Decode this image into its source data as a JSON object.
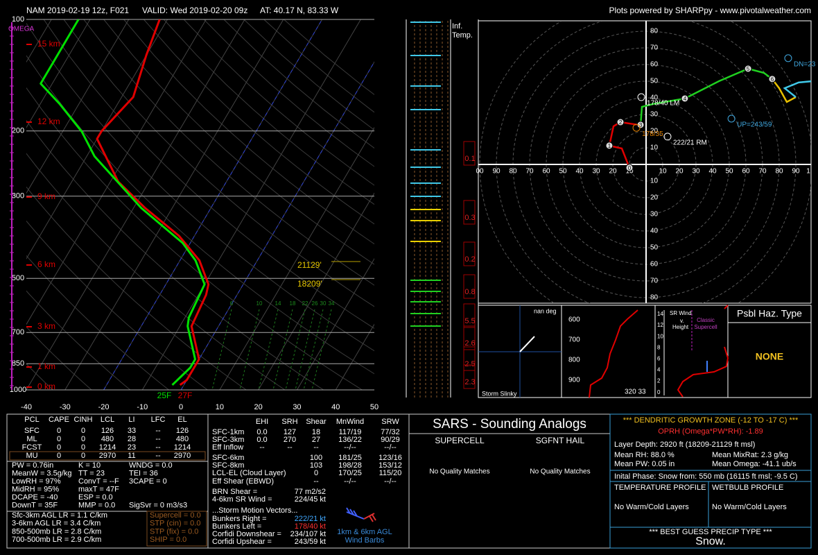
{
  "header": {
    "run": "NAM 2019-02-19 12z, F021",
    "valid": "VALID: Wed 2019-02-20 09z",
    "location": "AT: 40.17 N, 83.33 W",
    "credit": "Plots powered by SHARPpy - www.pivotalweather.com"
  },
  "skewt": {
    "pressure_ticks": [
      100,
      200,
      300,
      500,
      700,
      850,
      1000
    ],
    "plim": [
      100,
      1000
    ],
    "temp_ticks": [
      -40,
      -30,
      -20,
      -10,
      0,
      10,
      20,
      30,
      40,
      50
    ],
    "tlim": [
      -40,
      50
    ],
    "highlight_isotherms": [
      -20,
      0
    ],
    "omega_label": "OMEGA",
    "height_labels": [
      "15 km",
      "12 km",
      "9 km",
      "6 km",
      "3 km",
      "1 km",
      "0 km"
    ],
    "temperature": {
      "color": "#e00000",
      "pressure": [
        970,
        941,
        827,
        673,
        554,
        519,
        447,
        384,
        323,
        274,
        210,
        200,
        162,
        125,
        100
      ],
      "values": [
        -1,
        0,
        0,
        -7,
        -8,
        -9,
        -15,
        -24,
        -37,
        -48,
        -60,
        -60,
        -57,
        -60,
        -62
      ]
    },
    "dewpoint": {
      "color": "#00e000",
      "pressure": [
        970,
        871,
        827,
        673,
        638,
        519,
        447,
        401,
        323,
        234,
        201,
        169,
        149,
        110,
        100
      ],
      "values": [
        -3,
        -1,
        -1,
        -8,
        -9,
        -10,
        -16,
        -22,
        -38,
        -58,
        -65,
        -75,
        -83,
        -83,
        -83
      ]
    },
    "dgz_labels": [
      "21129'",
      "18209'"
    ],
    "surface_labels": [
      "25F",
      "27F"
    ],
    "mixing_ratio_labels": [
      "6",
      "10",
      "14",
      "18",
      "22",
      "26",
      "30",
      "34"
    ]
  },
  "inferred": {
    "title": [
      "Inf.",
      "Temp."
    ],
    "values": [
      0.1,
      0.3,
      0.2,
      0.8,
      5.5,
      2.6,
      2.5,
      2.3
    ]
  },
  "hodograph": {
    "up_labels": [
      "80",
      "70",
      "60",
      "50",
      "40",
      "30",
      "20",
      "10"
    ],
    "left_labels": [
      "00",
      "90",
      "80",
      "70",
      "60",
      "50",
      "40",
      "30",
      "20",
      "10"
    ],
    "right_labels": [
      "10",
      "20",
      "30",
      "40",
      "50",
      "60",
      "70",
      "80",
      "90",
      "1"
    ],
    "down_labels": [
      "10",
      "20",
      "30",
      "40",
      "50",
      "60",
      "70",
      "80"
    ],
    "segments": [
      {
        "color": "#e00000",
        "u": [
          -10,
          -14.6,
          -22.1,
          -19.6,
          -15.4,
          -5
        ],
        "v": [
          -2,
          9.6,
          11.3,
          22.9,
          25.4,
          23.8
        ]
      },
      {
        "color": "#20d020",
        "u": [
          -3.3,
          -2.5,
          4.2,
          23.3,
          43.8,
          61.3,
          70.8,
          75.8
        ],
        "v": [
          23.8,
          34.6,
          36.3,
          39.6,
          50,
          57.5,
          55,
          51.3
        ]
      },
      {
        "color": "#e8c000",
        "u": [
          75.8,
          80,
          84.6,
          90
        ],
        "v": [
          51.3,
          45.8,
          37.5,
          40.4
        ]
      },
      {
        "color": "#40c8e8",
        "u": [
          90,
          83.3,
          91.7,
          100
        ],
        "v": [
          40.4,
          45.8,
          49.2,
          50
        ]
      }
    ],
    "markers": {
      "labels": [
        "0",
        "1",
        "2",
        "3",
        "4",
        "5",
        "6"
      ],
      "u": [
        -10,
        -22.1,
        -15.4,
        -3.3,
        23.3,
        61.3,
        75.8
      ],
      "v": [
        -2,
        11.3,
        25.4,
        23.8,
        39.6,
        57.5,
        51.3
      ]
    },
    "vectors": [
      {
        "label": "178/40 LM",
        "u": -2.9,
        "v": 40.4,
        "color": "#ffffff"
      },
      {
        "label": "222/21 RM",
        "u": 12.9,
        "v": 16.7,
        "color": "#ffffff"
      },
      {
        "label": "UP=243/59",
        "u": 51.3,
        "v": 27.5,
        "color": "#40a8e0"
      },
      {
        "label": "DN=23",
        "u": 85.4,
        "v": 63.8,
        "color": "#40a8e0"
      },
      {
        "label": "178/35",
        "u": -5.8,
        "v": 22,
        "color": "#e08000"
      }
    ]
  },
  "slinky": {
    "label": "nan deg",
    "title": "Storm Slinky"
  },
  "theta_e": {
    "pressure_labels": [
      "600",
      "700",
      "800",
      "900"
    ],
    "footer": "320 33"
  },
  "sr_wind": {
    "title": [
      "SR Wind",
      "v.",
      "Height"
    ],
    "height_labels": [
      "14",
      "12",
      "10",
      "8",
      "6",
      "4",
      "2",
      "0"
    ],
    "reference": [
      "Classic",
      "Supercell"
    ]
  },
  "hazard": {
    "title": "Psbl Haz. Type",
    "value": "NONE"
  },
  "parcels": {
    "columns": [
      "PCL",
      "CAPE",
      "CINH",
      "LCL",
      "LI",
      "LFC",
      "EL"
    ],
    "rows": [
      [
        "SFC",
        0,
        0,
        126,
        33,
        "--",
        126
      ],
      [
        "ML",
        0,
        0,
        480,
        28,
        "--",
        480
      ],
      [
        "FCST",
        0,
        0,
        1214,
        23,
        "--",
        1214
      ],
      [
        "MU",
        0,
        0,
        2970,
        11,
        "--",
        2970
      ]
    ]
  },
  "indices": [
    [
      "PW = 0.76in",
      "K = 10",
      "WNDG = 0.0"
    ],
    [
      "MeanW = 3.5g/kg",
      "TT = 23",
      "TEI = 36"
    ],
    [
      "LowRH = 97%",
      "ConvT = --F",
      "3CAPE = 0"
    ],
    [
      "MidRH = 95%",
      "maxT = 47F"
    ],
    [
      "DCAPE = -40",
      "ESP = 0.0"
    ],
    [
      "DownT = 35F",
      "MMP = 0.0",
      "SigSvr = 0 m3/s3"
    ]
  ],
  "lapse_rates": [
    "Sfc-3km AGL LR = 1.1 C/km",
    "3-6km AGL LR = 3.4 C/km",
    "850-500mb LR = 2.8 C/km",
    "700-500mb LR = 2.9 C/km"
  ],
  "composites": [
    "Supercell = 0.0",
    "STP (cin) = 0.0",
    "STP (fix) = 0.0",
    "SHIP = 0.0"
  ],
  "kinematics": {
    "columns": [
      "EHI",
      "SRH",
      "Shear",
      "MnWind",
      "SRW"
    ],
    "rows": [
      [
        "SFC-1km",
        "0.0",
        127,
        18,
        "117/19",
        "77/32"
      ],
      [
        "SFC-3km",
        "0.0",
        270,
        27,
        "136/22",
        "90/29"
      ],
      [
        "Eff Inflow",
        "--",
        "--",
        "--",
        "--/--",
        "--/--"
      ],
      [
        "SFC-6km",
        null,
        null,
        100,
        "181/25",
        "123/16"
      ],
      [
        "SFC-8km",
        null,
        null,
        103,
        "198/28",
        "153/12"
      ],
      [
        "LCL-EL (Cloud Layer)",
        null,
        null,
        0,
        "170/25",
        "115/20"
      ],
      [
        "Eff Shear (EBWD)",
        null,
        null,
        "--",
        "--/--",
        "--/--"
      ]
    ]
  },
  "shear_params": [
    [
      "BRN Shear =",
      "77 m2/s2"
    ],
    [
      "4-6km SR Wind =",
      "224/45 kt"
    ]
  ],
  "storm_motion": {
    "title": "...Storm Motion Vectors...",
    "rows": [
      [
        "Bunkers Right =",
        "222/21 kt"
      ],
      [
        "Bunkers Left =",
        "178/40 kt"
      ],
      [
        "Corfidi Downshear =",
        "234/107 kt"
      ],
      [
        "Corfidi Upshear =",
        "243/59 kt"
      ]
    ],
    "colors": [
      "#40a8ff",
      "#ff3030",
      "#ffffff",
      "#ffffff"
    ]
  },
  "barb_legend": [
    "1km & 6km AGL",
    "Wind Barbs"
  ],
  "sars": {
    "title": "SARS - Sounding Analogs",
    "columns": [
      "SUPERCELL",
      "SGFNT HAIL"
    ],
    "matches": [
      "No Quality Matches",
      "No Quality Matches"
    ]
  },
  "dgz": {
    "title": "*** DENDRITIC GROWTH ZONE (-12 TO -17 C) ***",
    "oprh": "OPRH (Omega*PW*RH): -1.89",
    "depth": "Layer Depth: 2920 ft (18209-21129 ft msl)",
    "stats": [
      [
        "Mean RH: 88.0 %",
        "Mean MixRat: 2.3 g/kg"
      ],
      [
        "Mean PW: 0.05 in",
        "Mean Omega: -41.1 ub/s"
      ]
    ]
  },
  "precip": {
    "phase": "Inital Phase: Snow from: 550 mb (16115 ft msl; -9.5 C)",
    "profiles": [
      "TEMPERATURE PROFILE",
      "WETBULB PROFILE"
    ],
    "layers": [
      "No Warm/Cold Layers",
      "No Warm/Cold Layers"
    ],
    "best_guess_title": "*** BEST GUESS PRECIP TYPE ***",
    "best_guess": "Snow."
  }
}
